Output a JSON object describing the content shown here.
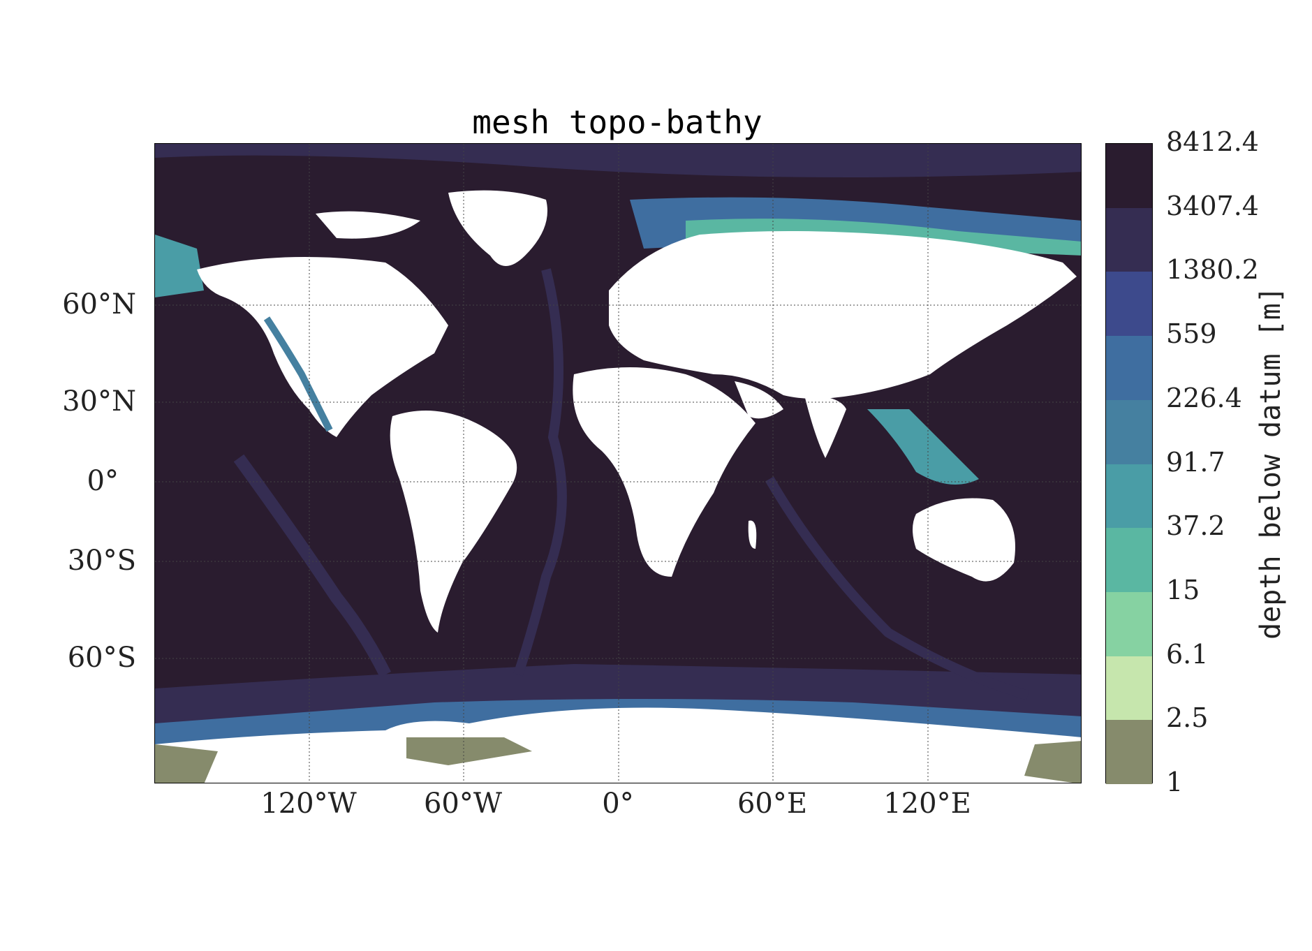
{
  "chart_data": {
    "type": "heatmap",
    "title": "mesh topo-bathy",
    "lat_ticks": [
      "60°N",
      "30°N",
      "0°",
      "30°S",
      "60°S"
    ],
    "lon_ticks": [
      "120°W",
      "60°W",
      "0°",
      "60°E",
      "120°E"
    ],
    "lon_range": [
      -180,
      180
    ],
    "lat_range": [
      -90,
      90
    ],
    "grid": true,
    "colorbar": {
      "label": "depth below datum [m]",
      "tick_labels": [
        "8412.4",
        "3407.4",
        "1380.2",
        "559",
        "226.4",
        "91.7",
        "37.2",
        "15",
        "6.1",
        "2.5",
        "1"
      ],
      "colors": [
        "#2a1c2f",
        "#352d52",
        "#3d4a8c",
        "#3f6ea0",
        "#4580a0",
        "#4a9da6",
        "#5ab7a2",
        "#86d2a2",
        "#c6e6ad",
        "#868b6c"
      ]
    }
  }
}
